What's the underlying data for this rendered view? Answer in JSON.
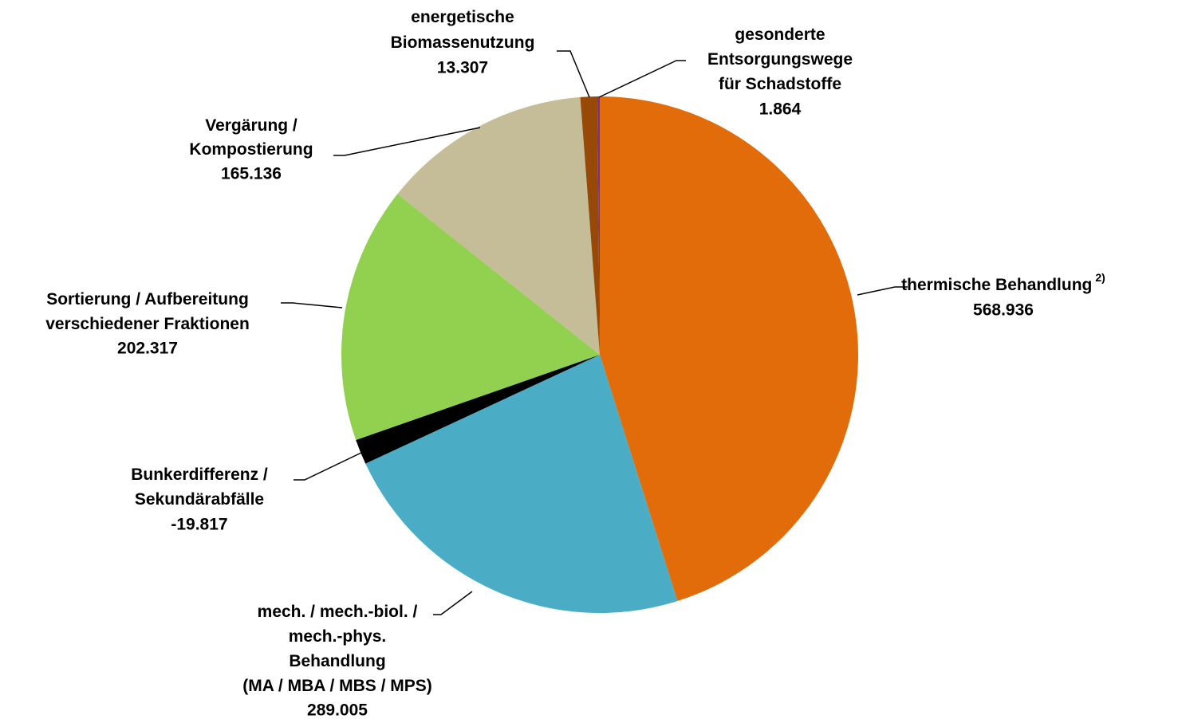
{
  "chart_data": {
    "type": "pie",
    "categories": [
      [
        "thermische Behandlung"
      ],
      [
        "mech. / mech.-biol. /",
        "mech.-phys.",
        "Behandlung",
        "(MA / MBA / MBS / MPS)"
      ],
      [
        "Bunkerdifferenz /",
        "Sekundärabfälle"
      ],
      [
        "Sortierung / Aufbereitung",
        "verschiedener Fraktionen"
      ],
      [
        "Vergärung /",
        "Kompostierung"
      ],
      [
        "energetische",
        "Biomassenutzung"
      ],
      [
        "gesonderte",
        "Entsorgungswege",
        "für Schadstoffe"
      ]
    ],
    "superscripts": [
      "2)",
      null,
      null,
      null,
      null,
      null,
      null
    ],
    "values": [
      568936,
      289005,
      -19817,
      202317,
      165136,
      13307,
      1864
    ],
    "value_labels": [
      "568.936",
      "289.005",
      "-19.817",
      "202.317",
      "165.136",
      "13.307",
      "1.864"
    ],
    "colors": [
      "#e36c0a",
      "#4bacc6",
      "#000000",
      "#92d050",
      "#c4bd97",
      "#984807",
      "#7030a0"
    ]
  }
}
